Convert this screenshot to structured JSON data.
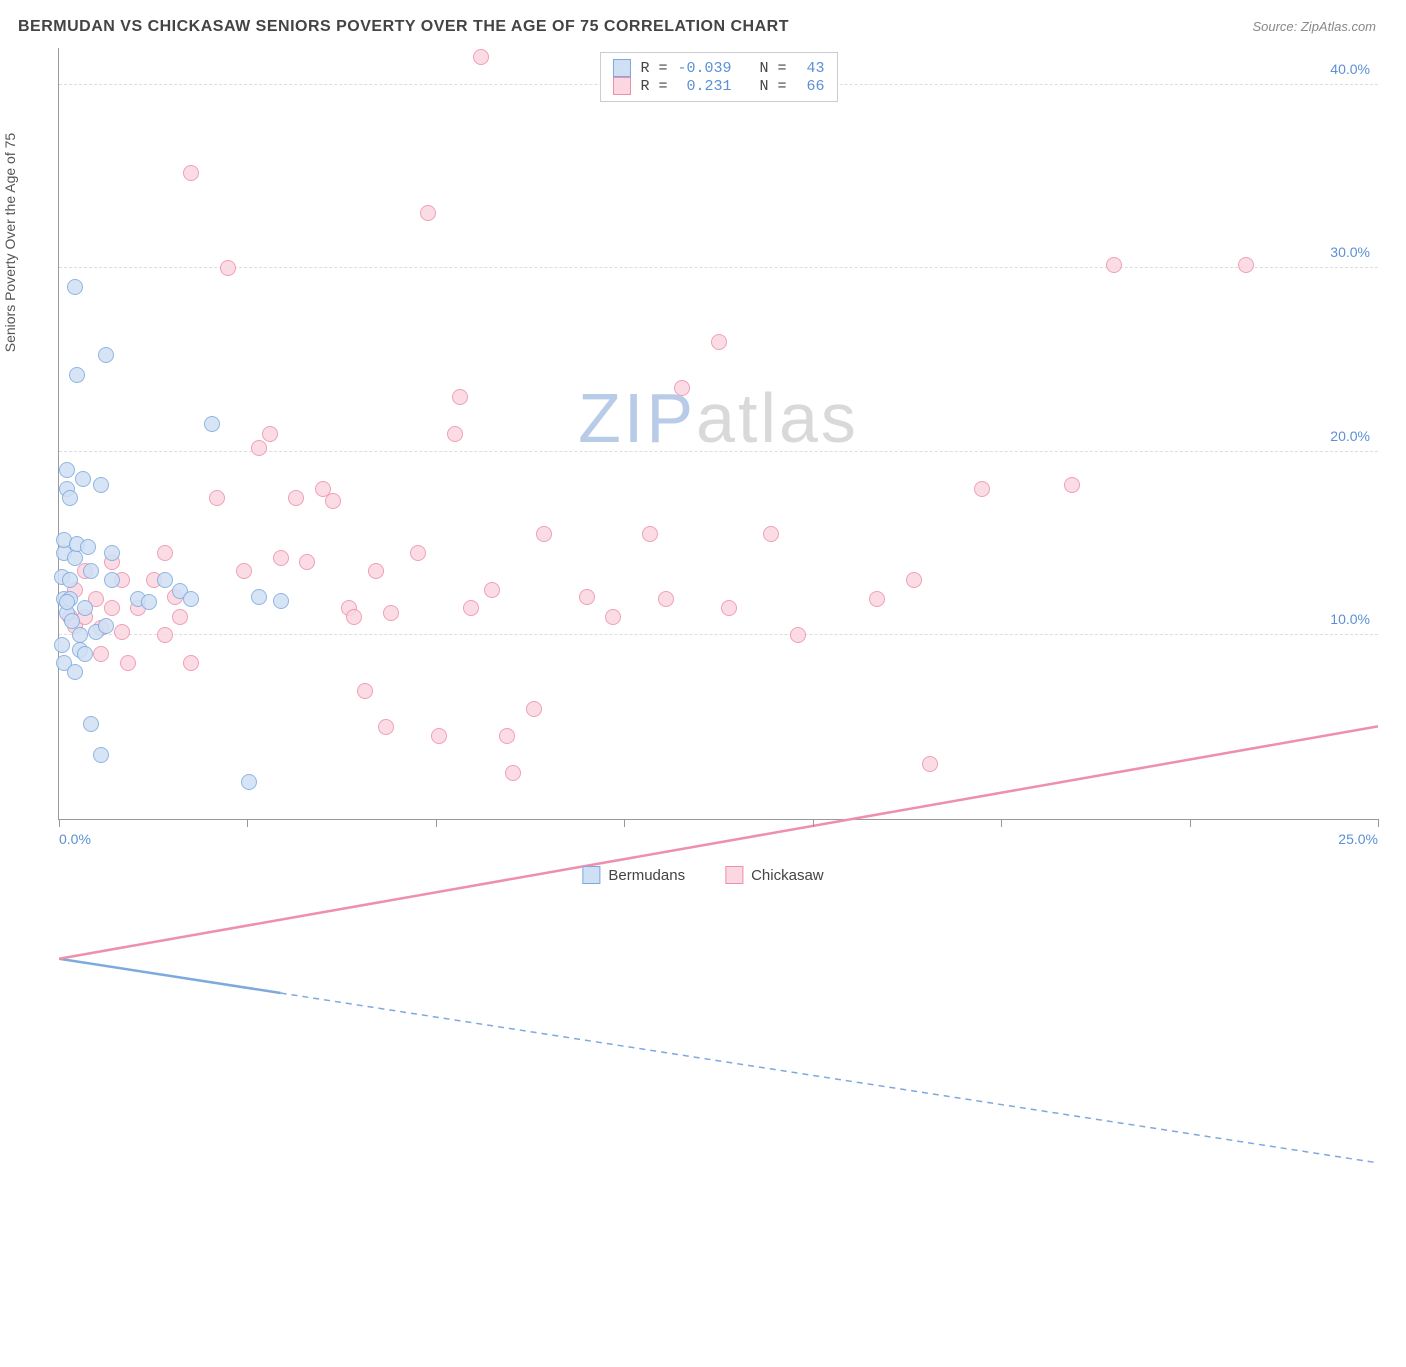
{
  "title": "BERMUDAN VS CHICKASAW SENIORS POVERTY OVER THE AGE OF 75 CORRELATION CHART",
  "source": "Source: ZipAtlas.com",
  "ylabel": "Seniors Poverty Over the Age of 75",
  "watermark": {
    "zip": "ZIP",
    "atlas": "atlas",
    "zip_color": "#b8cce8",
    "atlas_color": "#d9d9d9"
  },
  "chart": {
    "type": "scatter",
    "xlim": [
      0,
      25
    ],
    "ylim": [
      0,
      42
    ],
    "xticks": [
      0,
      3.57,
      7.14,
      10.71,
      14.29,
      17.86,
      21.43,
      25
    ],
    "xtick_labels": {
      "0": "0.0%",
      "25": "25.0%"
    },
    "ygrid": [
      10,
      20,
      30,
      40
    ],
    "ytick_labels": {
      "10": "10.0%",
      "20": "20.0%",
      "30": "30.0%",
      "40": "40.0%"
    },
    "background_color": "#ffffff",
    "grid_color": "#dddddd",
    "axis_color": "#999999",
    "tick_label_color": "#5b8fd6",
    "marker_radius": 8,
    "series": [
      {
        "name": "Bermudans",
        "fill": "#cfe0f5",
        "stroke": "#7ea9dd",
        "r_value": "-0.039",
        "n_value": "43",
        "trend": {
          "y_at_x0": 13.0,
          "y_at_xmax": 6.5,
          "solid_until_x": 4.2,
          "stroke_width": 2.5
        },
        "points": [
          [
            0.05,
            13.2
          ],
          [
            0.1,
            12.0
          ],
          [
            0.1,
            14.5
          ],
          [
            0.1,
            15.2
          ],
          [
            0.15,
            11.2
          ],
          [
            0.15,
            19.0
          ],
          [
            0.15,
            18.0
          ],
          [
            0.2,
            17.5
          ],
          [
            0.2,
            13.0
          ],
          [
            0.2,
            12.0
          ],
          [
            0.25,
            10.8
          ],
          [
            0.3,
            14.2
          ],
          [
            0.3,
            29.0
          ],
          [
            0.35,
            24.2
          ],
          [
            0.35,
            15.0
          ],
          [
            0.4,
            10.0
          ],
          [
            0.4,
            9.2
          ],
          [
            0.45,
            18.5
          ],
          [
            0.5,
            11.5
          ],
          [
            0.55,
            14.8
          ],
          [
            0.6,
            13.5
          ],
          [
            0.05,
            9.5
          ],
          [
            0.1,
            8.5
          ],
          [
            0.3,
            8.0
          ],
          [
            0.8,
            3.5
          ],
          [
            0.6,
            5.2
          ],
          [
            0.5,
            9.0
          ],
          [
            0.7,
            10.2
          ],
          [
            0.8,
            18.2
          ],
          [
            0.9,
            25.3
          ],
          [
            1.0,
            14.5
          ],
          [
            1.0,
            13.0
          ],
          [
            0.9,
            10.5
          ],
          [
            1.5,
            12.0
          ],
          [
            1.7,
            11.8
          ],
          [
            2.0,
            13.0
          ],
          [
            2.3,
            12.4
          ],
          [
            2.5,
            12.0
          ],
          [
            2.9,
            21.5
          ],
          [
            3.8,
            12.1
          ],
          [
            4.2,
            11.9
          ],
          [
            3.6,
            2.0
          ],
          [
            0.15,
            11.8
          ]
        ]
      },
      {
        "name": "Chickasaw",
        "fill": "#fbd7e1",
        "stroke": "#ee8fab",
        "r_value": "0.231",
        "n_value": "66",
        "trend": {
          "y_at_x0": 13.0,
          "y_at_xmax": 20.4,
          "solid_until_x": 25,
          "stroke_width": 2.5
        },
        "points": [
          [
            0.2,
            11.0
          ],
          [
            0.3,
            12.5
          ],
          [
            0.3,
            10.5
          ],
          [
            0.5,
            11.0
          ],
          [
            0.5,
            13.5
          ],
          [
            0.7,
            12.0
          ],
          [
            0.8,
            10.4
          ],
          [
            0.8,
            9.0
          ],
          [
            1.0,
            11.5
          ],
          [
            1.0,
            14.0
          ],
          [
            1.2,
            10.2
          ],
          [
            1.2,
            13.0
          ],
          [
            1.3,
            8.5
          ],
          [
            1.5,
            11.5
          ],
          [
            1.8,
            13.0
          ],
          [
            2.0,
            10.0
          ],
          [
            2.0,
            14.5
          ],
          [
            2.2,
            12.1
          ],
          [
            2.3,
            11.0
          ],
          [
            2.5,
            35.2
          ],
          [
            2.5,
            8.5
          ],
          [
            3.0,
            17.5
          ],
          [
            3.2,
            30.0
          ],
          [
            3.5,
            13.5
          ],
          [
            3.8,
            20.2
          ],
          [
            4.0,
            21.0
          ],
          [
            4.5,
            17.5
          ],
          [
            4.7,
            14.0
          ],
          [
            5.0,
            18.0
          ],
          [
            5.2,
            17.3
          ],
          [
            5.5,
            11.5
          ],
          [
            5.6,
            11.0
          ],
          [
            5.8,
            7.0
          ],
          [
            6.0,
            13.5
          ],
          [
            6.2,
            5.0
          ],
          [
            6.3,
            11.2
          ],
          [
            6.8,
            14.5
          ],
          [
            7.0,
            33.0
          ],
          [
            7.2,
            4.5
          ],
          [
            7.5,
            21.0
          ],
          [
            7.6,
            23.0
          ],
          [
            7.8,
            11.5
          ],
          [
            8.0,
            41.5
          ],
          [
            8.2,
            12.5
          ],
          [
            8.5,
            4.5
          ],
          [
            8.6,
            2.5
          ],
          [
            9.0,
            6.0
          ],
          [
            9.2,
            15.5
          ],
          [
            10.0,
            12.1
          ],
          [
            10.5,
            11.0
          ],
          [
            11.2,
            15.5
          ],
          [
            11.5,
            12.0
          ],
          [
            11.8,
            23.5
          ],
          [
            12.5,
            26.0
          ],
          [
            12.7,
            11.5
          ],
          [
            13.5,
            15.5
          ],
          [
            14.0,
            10.0
          ],
          [
            15.5,
            12.0
          ],
          [
            16.2,
            13.0
          ],
          [
            16.5,
            3.0
          ],
          [
            17.5,
            18.0
          ],
          [
            19.2,
            18.2
          ],
          [
            20.0,
            30.2
          ],
          [
            22.5,
            30.2
          ],
          [
            12.0,
            41.2
          ],
          [
            4.2,
            14.2
          ]
        ]
      }
    ]
  },
  "legend_bottom": [
    {
      "label": "Bermudans",
      "series_idx": 0
    },
    {
      "label": "Chickasaw",
      "series_idx": 1
    }
  ]
}
